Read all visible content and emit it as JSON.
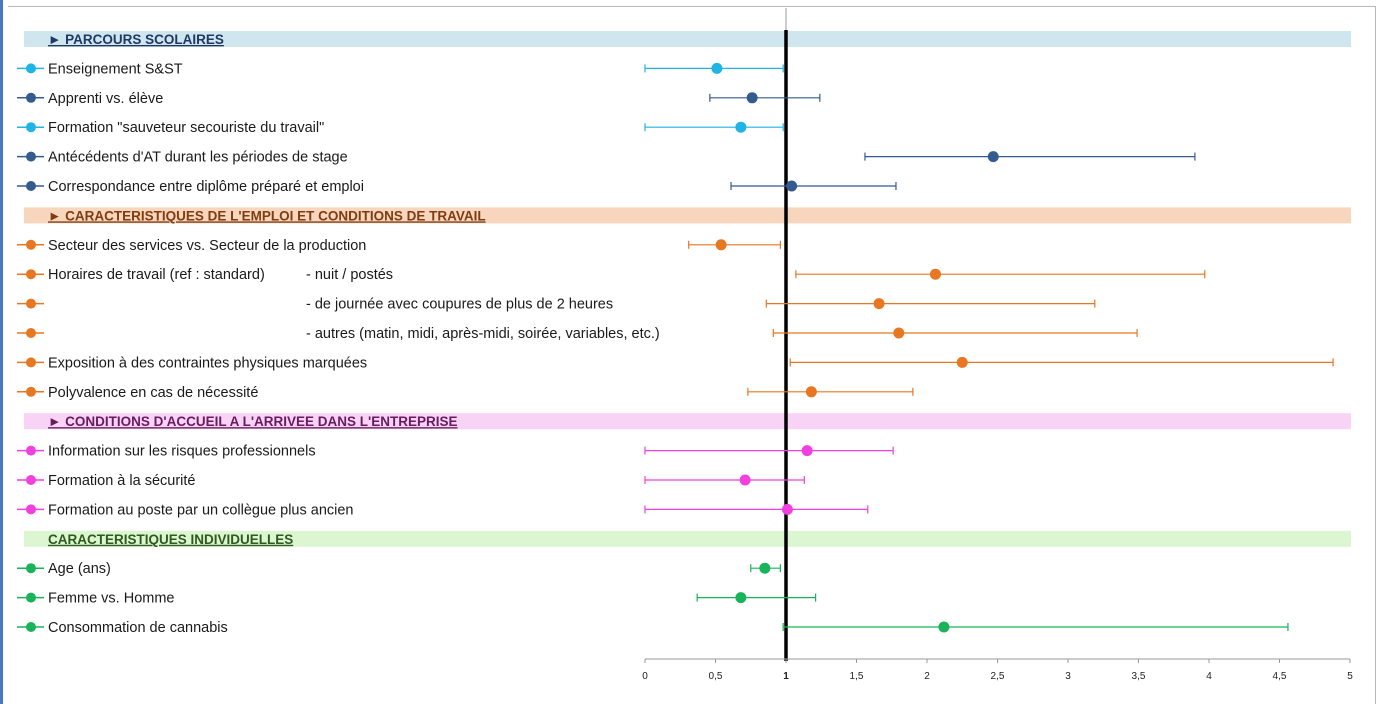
{
  "chart_data": {
    "type": "scatter",
    "subtype": "forest-plot-odds-ratios",
    "xlim": [
      0,
      5
    ],
    "xticks": [
      "0",
      "0,5",
      "1",
      "1,5",
      "2",
      "2,5",
      "3",
      "3,5",
      "4",
      "4,5",
      "5"
    ],
    "reference_line": 1,
    "grid": false,
    "sections": [
      {
        "title": "► PARCOURS SCOLAIRES",
        "band_color": "#cfe6ee",
        "title_color": "#1f3864",
        "rows": [
          {
            "label": "Enseignement S&ST",
            "detail": "",
            "or": 0.51,
            "lo": 0.0,
            "hi": 0.98,
            "color": "#1fb3e6"
          },
          {
            "label": "Apprenti vs. élève",
            "detail": "",
            "or": 0.76,
            "lo": 0.46,
            "hi": 1.24,
            "color": "#335b8e"
          },
          {
            "label": "Formation \"sauveteur secouriste du travail\"",
            "detail": "",
            "or": 0.68,
            "lo": 0.0,
            "hi": 0.98,
            "color": "#1fb3e6"
          },
          {
            "label": "Antécédents d'AT durant les périodes de stage",
            "detail": "",
            "or": 2.47,
            "lo": 1.56,
            "hi": 3.9,
            "color": "#335b8e"
          },
          {
            "label": "Correspondance entre diplôme préparé et emploi",
            "detail": "",
            "or": 1.04,
            "lo": 0.61,
            "hi": 1.78,
            "color": "#335b8e"
          }
        ]
      },
      {
        "title": "► CARACTERISTIQUES DE L'EMPLOI ET CONDITIONS DE TRAVAIL",
        "band_color": "#f8d5bd",
        "title_color": "#7f3d12",
        "rows": [
          {
            "label": "Secteur des services vs. Secteur de la production",
            "detail": "",
            "or": 0.54,
            "lo": 0.31,
            "hi": 0.96,
            "color": "#e87722"
          },
          {
            "label": "Horaires de travail (ref : standard)",
            "detail": "- nuit / postés",
            "or": 2.06,
            "lo": 1.07,
            "hi": 3.97,
            "color": "#e87722"
          },
          {
            "label": "",
            "detail": "- de journée avec coupures de plus de 2 heures",
            "or": 1.66,
            "lo": 0.86,
            "hi": 3.19,
            "color": "#e87722"
          },
          {
            "label": "",
            "detail": "- autres (matin, midi, après-midi, soirée, variables, etc.)",
            "or": 1.8,
            "lo": 0.91,
            "hi": 3.49,
            "color": "#e87722"
          },
          {
            "label": "Exposition à des contraintes physiques marquées",
            "detail": "",
            "or": 2.25,
            "lo": 1.03,
            "hi": 4.88,
            "color": "#e87722"
          },
          {
            "label": "Polyvalence en cas de nécessité",
            "detail": "",
            "or": 1.18,
            "lo": 0.73,
            "hi": 1.9,
            "color": "#e87722"
          }
        ]
      },
      {
        "title": "► CONDITIONS D'ACCUEIL A L'ARRIVEE DANS L'ENTREPRISE",
        "band_color": "#f9d3f5",
        "title_color": "#6a1b5f",
        "rows": [
          {
            "label": "Information sur les risques professionnels",
            "detail": "",
            "or": 1.15,
            "lo": 0.0,
            "hi": 1.76,
            "color": "#f23fe0"
          },
          {
            "label": "Formation à la sécurité",
            "detail": "",
            "or": 0.71,
            "lo": 0.0,
            "hi": 1.13,
            "color": "#f23fe0"
          },
          {
            "label": "Formation au poste par un collègue plus ancien",
            "detail": "",
            "or": 1.01,
            "lo": 0.0,
            "hi": 1.58,
            "color": "#f23fe0"
          }
        ]
      },
      {
        "title": "CARACTERISTIQUES INDIVIDUELLES",
        "band_color": "#dcf6d2",
        "title_color": "#2e5a1e",
        "rows": [
          {
            "label": "Age (ans)",
            "detail": "",
            "or": 0.85,
            "lo": 0.75,
            "hi": 0.96,
            "color": "#19b35a"
          },
          {
            "label": "Femme vs. Homme",
            "detail": "",
            "or": 0.68,
            "lo": 0.37,
            "hi": 1.21,
            "color": "#19b35a"
          },
          {
            "label": "Consommation de cannabis",
            "detail": "",
            "or": 2.12,
            "lo": 0.98,
            "hi": 4.56,
            "color": "#19b35a"
          }
        ]
      }
    ]
  }
}
